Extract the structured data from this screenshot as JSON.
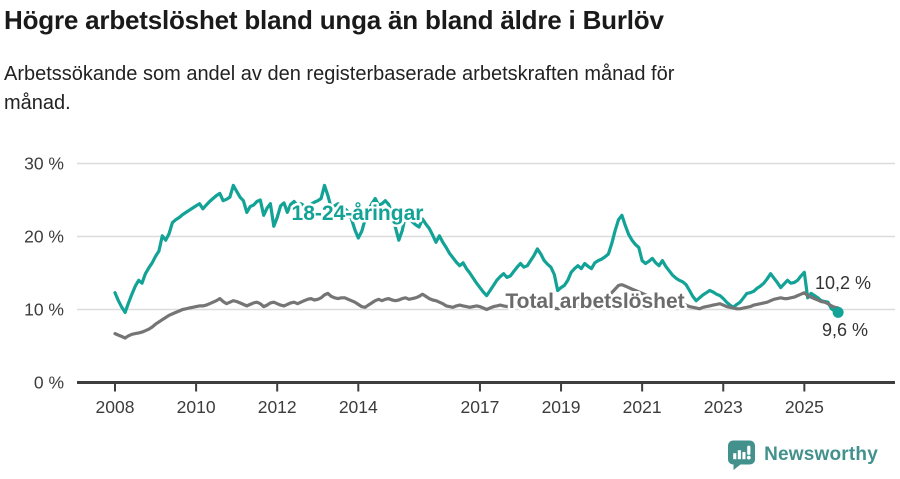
{
  "header": {
    "title": "Högre arbetslöshet bland unga än bland äldre i Burlöv",
    "subtitle_lines": [
      "Arbetssökande som andel av den registerbaserade arbetskraften månad för",
      "månad."
    ]
  },
  "chart_data": {
    "type": "line",
    "title": "Högre arbetslöshet bland unga än bland äldre i Burlöv",
    "subtitle": "Arbetssökande som andel av den registerbaserade arbetskraften månad för månad.",
    "unit": "%",
    "x_start": "2008-01",
    "x_end": "2025-11",
    "x_frequency": "monthly",
    "x_ticks": [
      {
        "year": 2008,
        "label": "2008"
      },
      {
        "year": 2010,
        "label": "2010"
      },
      {
        "year": 2012,
        "label": "2012"
      },
      {
        "year": 2014,
        "label": "2014"
      },
      {
        "year": 2017,
        "label": "2017"
      },
      {
        "year": 2019,
        "label": "2019"
      },
      {
        "year": 2021,
        "label": "2021"
      },
      {
        "year": 2023,
        "label": "2023"
      },
      {
        "year": 2025,
        "label": "2025"
      }
    ],
    "y_ticks": [
      {
        "value": 0,
        "label": "0 %"
      },
      {
        "value": 10,
        "label": "10 %"
      },
      {
        "value": 20,
        "label": "20 %"
      },
      {
        "value": 30,
        "label": "30 %"
      }
    ],
    "ylim": [
      0,
      31.8
    ],
    "grid": "horizontal",
    "style": {
      "grid_color": "#dcdcdc",
      "axis_color": "#3d3d3d",
      "tick_text_color": "#3c3c3c",
      "end_label_color": "#333333"
    },
    "series": [
      {
        "name": "18-24-åringar",
        "color": "#12a296",
        "label_color": "#12a296",
        "end_label": "9,6 %",
        "end_value": 9.6,
        "end_dot": true,
        "values": [
          12.3,
          11.2,
          10.3,
          9.6,
          10.9,
          12.1,
          13.2,
          14.0,
          13.6,
          14.9,
          15.7,
          16.4,
          17.3,
          18.0,
          20.1,
          19.5,
          20.4,
          21.9,
          22.3,
          22.6,
          23.0,
          23.3,
          23.6,
          23.9,
          24.2,
          24.5,
          23.8,
          24.3,
          24.8,
          25.2,
          25.6,
          25.9,
          24.9,
          25.1,
          25.4,
          27.0,
          26.2,
          25.4,
          24.9,
          23.3,
          24.1,
          24.3,
          24.8,
          25.0,
          22.9,
          23.9,
          24.5,
          21.4,
          22.6,
          24.2,
          24.6,
          23.3,
          24.4,
          24.8,
          24.2,
          24.5,
          24.2,
          24.0,
          24.4,
          24.7,
          24.9,
          25.2,
          27.0,
          25.6,
          23.9,
          24.2,
          24.5,
          24.1,
          23.8,
          23.4,
          22.4,
          20.9,
          19.8,
          20.7,
          22.3,
          23.6,
          24.5,
          25.2,
          24.3,
          24.5,
          24.9,
          24.4,
          23.1,
          21.2,
          19.5,
          20.8,
          22.9,
          22.5,
          22.0,
          21.6,
          21.3,
          22.4,
          21.7,
          21.1,
          20.2,
          19.2,
          20.1,
          19.2,
          18.5,
          17.7,
          17.1,
          16.5,
          16.0,
          16.4,
          15.6,
          15.0,
          14.3,
          13.6,
          13.0,
          12.4,
          11.9,
          12.6,
          13.3,
          14.0,
          14.5,
          14.9,
          14.4,
          14.6,
          15.2,
          15.8,
          16.3,
          15.8,
          16.0,
          16.7,
          17.4,
          18.3,
          17.6,
          16.7,
          16.2,
          15.8,
          14.8,
          12.6,
          13.0,
          13.3,
          14.0,
          15.1,
          15.6,
          16.0,
          15.6,
          16.3,
          15.9,
          15.6,
          16.4,
          16.7,
          16.9,
          17.2,
          17.6,
          19.0,
          20.8,
          22.3,
          22.9,
          21.5,
          20.3,
          19.5,
          18.9,
          18.5,
          16.7,
          16.3,
          16.6,
          17.0,
          16.4,
          16.0,
          16.7,
          15.9,
          15.3,
          14.7,
          14.3,
          14.0,
          13.8,
          13.4,
          12.6,
          11.8,
          11.2,
          11.6,
          12.0,
          12.3,
          12.6,
          12.4,
          12.1,
          11.9,
          11.5,
          11.0,
          10.6,
          10.3,
          10.7,
          11.0,
          11.6,
          12.2,
          12.3,
          12.5,
          12.9,
          13.2,
          13.6,
          14.2,
          14.9,
          14.3,
          13.7,
          13.0,
          13.5,
          14.0,
          13.6,
          13.7,
          14.0,
          14.6,
          15.1,
          11.6,
          12.2,
          11.9,
          11.6,
          11.2,
          11.1,
          11.0,
          10.1,
          9.8,
          9.6
        ]
      },
      {
        "name": "Total arbetslöshet",
        "color": "#757575",
        "label_color": "#6b6b6b",
        "end_label": "10,2 %",
        "end_value": 10.2,
        "end_dot": false,
        "values": [
          6.7,
          6.5,
          6.3,
          6.1,
          6.4,
          6.6,
          6.7,
          6.8,
          6.9,
          7.1,
          7.3,
          7.6,
          8.0,
          8.3,
          8.6,
          8.9,
          9.2,
          9.4,
          9.6,
          9.8,
          10.0,
          10.1,
          10.2,
          10.3,
          10.4,
          10.5,
          10.5,
          10.6,
          10.8,
          11.0,
          11.2,
          11.5,
          11.1,
          10.8,
          11.0,
          11.2,
          11.1,
          10.9,
          10.7,
          10.5,
          10.7,
          10.9,
          11.0,
          10.8,
          10.4,
          10.6,
          10.9,
          11.0,
          10.8,
          10.6,
          10.5,
          10.7,
          10.9,
          11.0,
          10.8,
          11.0,
          11.2,
          11.4,
          11.5,
          11.3,
          11.4,
          11.6,
          12.0,
          12.2,
          11.8,
          11.6,
          11.5,
          11.6,
          11.6,
          11.4,
          11.2,
          11.0,
          10.7,
          10.4,
          10.3,
          10.6,
          10.9,
          11.2,
          11.4,
          11.2,
          11.4,
          11.5,
          11.3,
          11.2,
          11.3,
          11.5,
          11.6,
          11.4,
          11.5,
          11.6,
          11.8,
          12.1,
          11.8,
          11.5,
          11.3,
          11.2,
          11.0,
          10.8,
          10.5,
          10.4,
          10.3,
          10.5,
          10.6,
          10.5,
          10.4,
          10.3,
          10.4,
          10.5,
          10.4,
          10.2,
          10.0,
          10.2,
          10.4,
          10.5,
          10.6,
          10.5,
          10.4,
          10.5,
          10.6,
          10.7,
          10.6,
          10.5,
          10.4,
          10.5,
          10.6,
          10.7,
          10.6,
          10.5,
          10.4,
          10.3,
          10.2,
          10.1,
          10.2,
          10.3,
          10.4,
          10.5,
          10.6,
          10.7,
          10.8,
          10.9,
          10.8,
          10.9,
          11.0,
          11.1,
          11.2,
          11.4,
          11.8,
          12.3,
          12.8,
          13.3,
          13.4,
          13.2,
          13.0,
          12.8,
          12.6,
          12.4,
          12.2,
          12.0,
          11.8,
          11.6,
          11.4,
          11.2,
          11.0,
          10.9,
          10.8,
          10.7,
          10.6,
          10.6,
          10.7,
          10.6,
          10.4,
          10.3,
          10.2,
          10.1,
          10.3,
          10.4,
          10.5,
          10.6,
          10.7,
          10.8,
          10.6,
          10.4,
          10.3,
          10.2,
          10.1,
          10.1,
          10.2,
          10.3,
          10.4,
          10.6,
          10.7,
          10.8,
          10.9,
          11.0,
          11.2,
          11.4,
          11.5,
          11.6,
          11.5,
          11.5,
          11.6,
          11.7,
          11.9,
          12.1,
          12.3,
          11.9,
          11.7,
          11.5,
          11.3,
          11.1,
          11.0,
          10.8,
          10.5,
          10.3,
          10.2
        ]
      }
    ],
    "legend_position": "inline-labels"
  },
  "footer": {
    "brand": "Newsworthy",
    "brand_color": "#43918d"
  }
}
